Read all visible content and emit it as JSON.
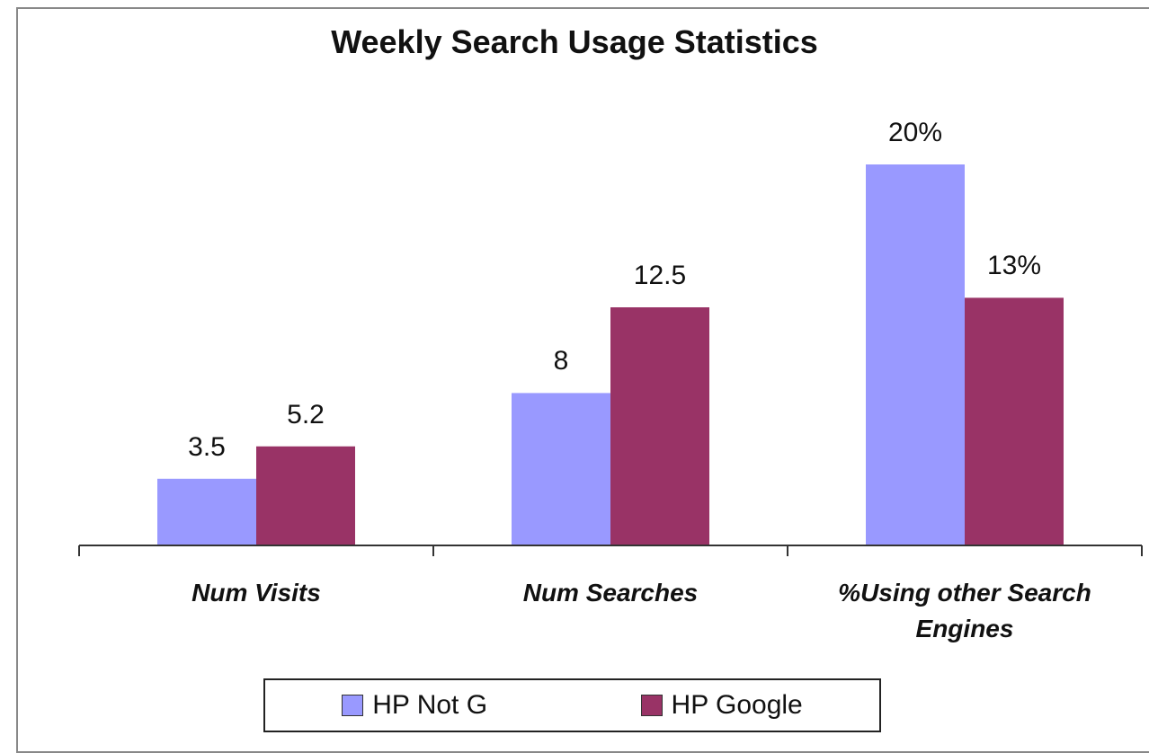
{
  "chart_data": {
    "type": "bar",
    "title": "Weekly Search Usage Statistics",
    "categories": [
      "Num Visits",
      "Num Searches",
      "%Using other Search Engines"
    ],
    "series": [
      {
        "name": "HP Not G",
        "color": "#9999ff",
        "values": [
          3.5,
          8,
          20
        ],
        "value_labels": [
          "3.5",
          "8",
          "20%"
        ]
      },
      {
        "name": "HP Google",
        "color": "#993366",
        "values": [
          5.2,
          12.5,
          13
        ],
        "value_labels": [
          "5.2",
          "12.5",
          "13%"
        ]
      }
    ]
  }
}
